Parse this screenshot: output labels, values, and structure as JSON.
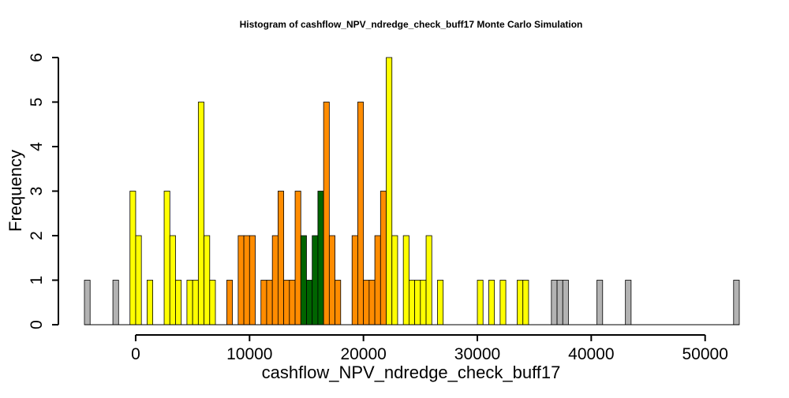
{
  "chart_data": {
    "type": "bar",
    "title": "Histogram of  cashflow_NPV_ndredge_check_buff17  Monte Carlo Simulation",
    "xlabel": "cashflow_NPV_ndredge_check_buff17",
    "ylabel": "Frequency",
    "xlim": [
      -4700,
      53000
    ],
    "ylim": [
      0,
      6
    ],
    "bin_width": 500,
    "x_ticks": [
      0,
      10000,
      20000,
      30000,
      40000,
      50000
    ],
    "x_tick_labels": [
      "0",
      "10000",
      "20000",
      "30000",
      "40000",
      "50000"
    ],
    "y_ticks": [
      0,
      1,
      2,
      3,
      4,
      5,
      6
    ],
    "y_tick_labels": [
      "0",
      "1",
      "2",
      "3",
      "4",
      "5",
      "6"
    ],
    "grid": false,
    "legend": "none",
    "colors": {
      "tail": "#b3b3b3",
      "outer": "#ffff00",
      "inner": "#ff8c00",
      "center": "#006400",
      "empty": "#000000"
    },
    "bins_start": -4500,
    "bars": [
      {
        "x": -4500,
        "count": 1,
        "band": "tail"
      },
      {
        "x": -2000,
        "count": 1,
        "band": "tail"
      },
      {
        "x": -500,
        "count": 3,
        "band": "outer"
      },
      {
        "x": 0,
        "count": 2,
        "band": "outer"
      },
      {
        "x": 1000,
        "count": 1,
        "band": "outer"
      },
      {
        "x": 2500,
        "count": 3,
        "band": "outer"
      },
      {
        "x": 3000,
        "count": 2,
        "band": "outer"
      },
      {
        "x": 3500,
        "count": 1,
        "band": "outer"
      },
      {
        "x": 4500,
        "count": 1,
        "band": "outer"
      },
      {
        "x": 5000,
        "count": 1,
        "band": "outer"
      },
      {
        "x": 5500,
        "count": 5,
        "band": "outer"
      },
      {
        "x": 6000,
        "count": 2,
        "band": "outer"
      },
      {
        "x": 6500,
        "count": 1,
        "band": "outer"
      },
      {
        "x": 8000,
        "count": 1,
        "band": "inner"
      },
      {
        "x": 9000,
        "count": 2,
        "band": "inner"
      },
      {
        "x": 9500,
        "count": 2,
        "band": "inner"
      },
      {
        "x": 10000,
        "count": 2,
        "band": "inner"
      },
      {
        "x": 11000,
        "count": 1,
        "band": "inner"
      },
      {
        "x": 11500,
        "count": 1,
        "band": "inner"
      },
      {
        "x": 12000,
        "count": 2,
        "band": "inner"
      },
      {
        "x": 12500,
        "count": 3,
        "band": "inner"
      },
      {
        "x": 13000,
        "count": 1,
        "band": "inner"
      },
      {
        "x": 13500,
        "count": 1,
        "band": "inner"
      },
      {
        "x": 14000,
        "count": 3,
        "band": "inner"
      },
      {
        "x": 14500,
        "count": 2,
        "band": "center"
      },
      {
        "x": 15000,
        "count": 1,
        "band": "center"
      },
      {
        "x": 15500,
        "count": 2,
        "band": "center"
      },
      {
        "x": 16000,
        "count": 3,
        "band": "center"
      },
      {
        "x": 16500,
        "count": 5,
        "band": "inner"
      },
      {
        "x": 17000,
        "count": 2,
        "band": "inner"
      },
      {
        "x": 17500,
        "count": 1,
        "band": "inner"
      },
      {
        "x": 19000,
        "count": 2,
        "band": "inner"
      },
      {
        "x": 19500,
        "count": 5,
        "band": "inner"
      },
      {
        "x": 20000,
        "count": 1,
        "band": "inner"
      },
      {
        "x": 20500,
        "count": 1,
        "band": "inner"
      },
      {
        "x": 21000,
        "count": 2,
        "band": "inner"
      },
      {
        "x": 21500,
        "count": 3,
        "band": "inner"
      },
      {
        "x": 22000,
        "count": 6,
        "band": "outer"
      },
      {
        "x": 22500,
        "count": 2,
        "band": "outer"
      },
      {
        "x": 23500,
        "count": 2,
        "band": "outer"
      },
      {
        "x": 24000,
        "count": 1,
        "band": "outer"
      },
      {
        "x": 24500,
        "count": 1,
        "band": "outer"
      },
      {
        "x": 25000,
        "count": 1,
        "band": "outer"
      },
      {
        "x": 25500,
        "count": 2,
        "band": "outer"
      },
      {
        "x": 26500,
        "count": 1,
        "band": "outer"
      },
      {
        "x": 30000,
        "count": 1,
        "band": "outer"
      },
      {
        "x": 31000,
        "count": 1,
        "band": "outer"
      },
      {
        "x": 32000,
        "count": 1,
        "band": "outer"
      },
      {
        "x": 33500,
        "count": 1,
        "band": "outer"
      },
      {
        "x": 34000,
        "count": 1,
        "band": "outer"
      },
      {
        "x": 36500,
        "count": 1,
        "band": "tail"
      },
      {
        "x": 37000,
        "count": 1,
        "band": "tail"
      },
      {
        "x": 37500,
        "count": 1,
        "band": "tail"
      },
      {
        "x": 40500,
        "count": 1,
        "band": "tail"
      },
      {
        "x": 43000,
        "count": 1,
        "band": "tail"
      },
      {
        "x": 52500,
        "count": 1,
        "band": "tail"
      }
    ]
  }
}
